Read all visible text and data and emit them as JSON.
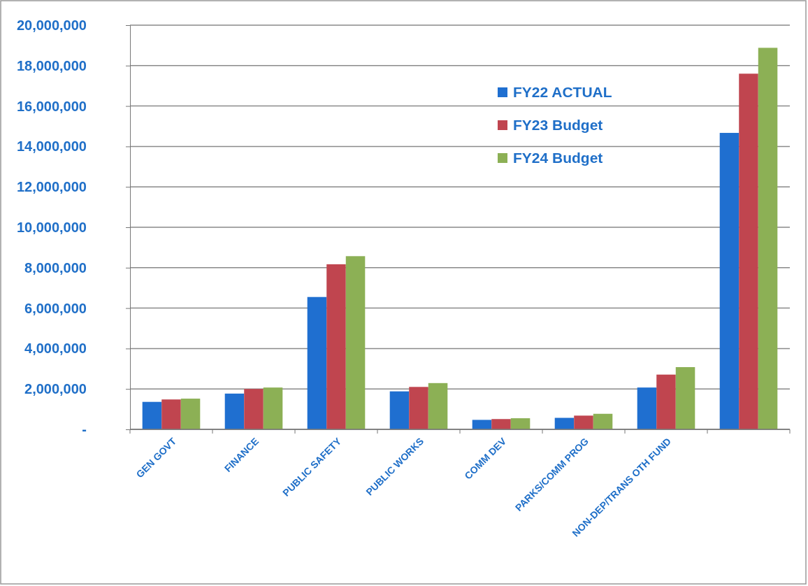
{
  "chart_data": {
    "type": "bar",
    "categories": [
      "GEN GOVT",
      "FINANCE",
      "PUBLIC SAFETY",
      "PUBLIC WORKS",
      "COMM DEV",
      "PARKS/COMM PROG",
      "NON-DEP/TRANS OTH FUND",
      null
    ],
    "series": [
      {
        "name": "FY22 ACTUAL",
        "color": "#1f6fd0",
        "values": [
          1360000,
          1770000,
          6550000,
          1880000,
          470000,
          570000,
          2070000,
          14670000
        ]
      },
      {
        "name": "FY23 Budget",
        "color": "#c0454f",
        "values": [
          1480000,
          2000000,
          8170000,
          2100000,
          510000,
          680000,
          2710000,
          17600000
        ]
      },
      {
        "name": "FY24 Budget",
        "color": "#8cb055",
        "values": [
          1520000,
          2070000,
          8570000,
          2290000,
          550000,
          770000,
          3080000,
          18880000
        ]
      }
    ],
    "ylim": [
      0,
      20000000
    ],
    "yticks": [
      {
        "value": 0,
        "label": "-"
      },
      {
        "value": 2000000,
        "label": "2,000,000"
      },
      {
        "value": 4000000,
        "label": "4,000,000"
      },
      {
        "value": 6000000,
        "label": "6,000,000"
      },
      {
        "value": 8000000,
        "label": "8,000,000"
      },
      {
        "value": 10000000,
        "label": "10,000,000"
      },
      {
        "value": 12000000,
        "label": "12,000,000"
      },
      {
        "value": 14000000,
        "label": "14,000,000"
      },
      {
        "value": 16000000,
        "label": "16,000,000"
      },
      {
        "value": 18000000,
        "label": "18,000,000"
      },
      {
        "value": 20000000,
        "label": "20,000,000"
      }
    ],
    "grid": "y",
    "legend": "top right"
  }
}
